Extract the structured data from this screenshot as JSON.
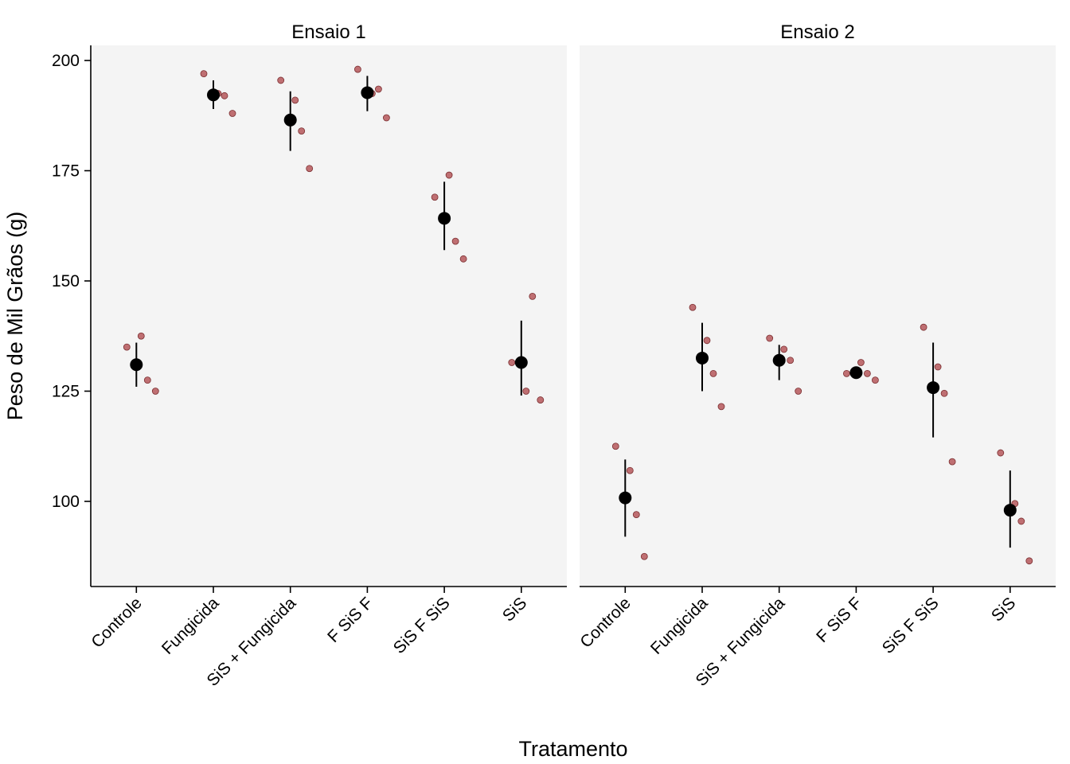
{
  "chart_data": {
    "type": "scatter",
    "ylabel": "Peso de Mil Grãos (g)",
    "xlabel": "Tratamento",
    "ylim": [
      80,
      210
    ],
    "yticks": [
      100,
      125,
      150,
      175,
      200
    ],
    "categories": [
      "Controle",
      "Fungicida",
      "SiS + Fungicida",
      "F SiS F",
      "SiS F SiS",
      "SiS"
    ],
    "colors": {
      "point": "#b5575a",
      "point_stroke": "#7a2e30",
      "mean": "#000000",
      "panel_bg": "#f4f4f4"
    },
    "panels": [
      {
        "title": "Ensaio 1",
        "groups": [
          {
            "category": "Controle",
            "points": [
              135,
              137.5,
              127.5,
              125
            ],
            "mean": 131,
            "lower": 126,
            "upper": 136
          },
          {
            "category": "Fungicida",
            "points": [
              197,
              192.5,
              192,
              188
            ],
            "mean": 192.2,
            "lower": 189,
            "upper": 195.5
          },
          {
            "category": "SiS + Fungicida",
            "points": [
              195.5,
              191,
              184,
              175.5
            ],
            "mean": 186.5,
            "lower": 179.5,
            "upper": 193
          },
          {
            "category": "F SiS F",
            "points": [
              198,
              192.5,
              193.5,
              187
            ],
            "mean": 192.7,
            "lower": 188.5,
            "upper": 196.5
          },
          {
            "category": "SiS F SiS",
            "points": [
              169,
              174,
              159,
              155
            ],
            "mean": 164.2,
            "lower": 157,
            "upper": 172.5
          },
          {
            "category": "SiS",
            "points": [
              131.5,
              125,
              146.5,
              123
            ],
            "mean": 131.5,
            "lower": 124,
            "upper": 141
          }
        ]
      },
      {
        "title": "Ensaio 2",
        "groups": [
          {
            "category": "Controle",
            "points": [
              112.5,
              107,
              97,
              87.5
            ],
            "mean": 100.8,
            "lower": 92,
            "upper": 109.5
          },
          {
            "category": "Fungicida",
            "points": [
              144,
              136.5,
              129,
              121.5
            ],
            "mean": 132.5,
            "lower": 125,
            "upper": 140.5
          },
          {
            "category": "SiS + Fungicida",
            "points": [
              137,
              134.5,
              132,
              125
            ],
            "mean": 132,
            "lower": 127.5,
            "upper": 135.5
          },
          {
            "category": "F SiS F",
            "points": [
              129,
              131.5,
              129,
              127.5
            ],
            "mean": 129.2,
            "lower": 128.5,
            "upper": 130
          },
          {
            "category": "SiS F SiS",
            "points": [
              139.5,
              130.5,
              124.5,
              109
            ],
            "mean": 125.8,
            "lower": 114.5,
            "upper": 136
          },
          {
            "category": "SiS",
            "points": [
              111,
              99.5,
              95.5,
              86.5
            ],
            "mean": 98,
            "lower": 89.5,
            "upper": 107
          }
        ]
      }
    ]
  }
}
